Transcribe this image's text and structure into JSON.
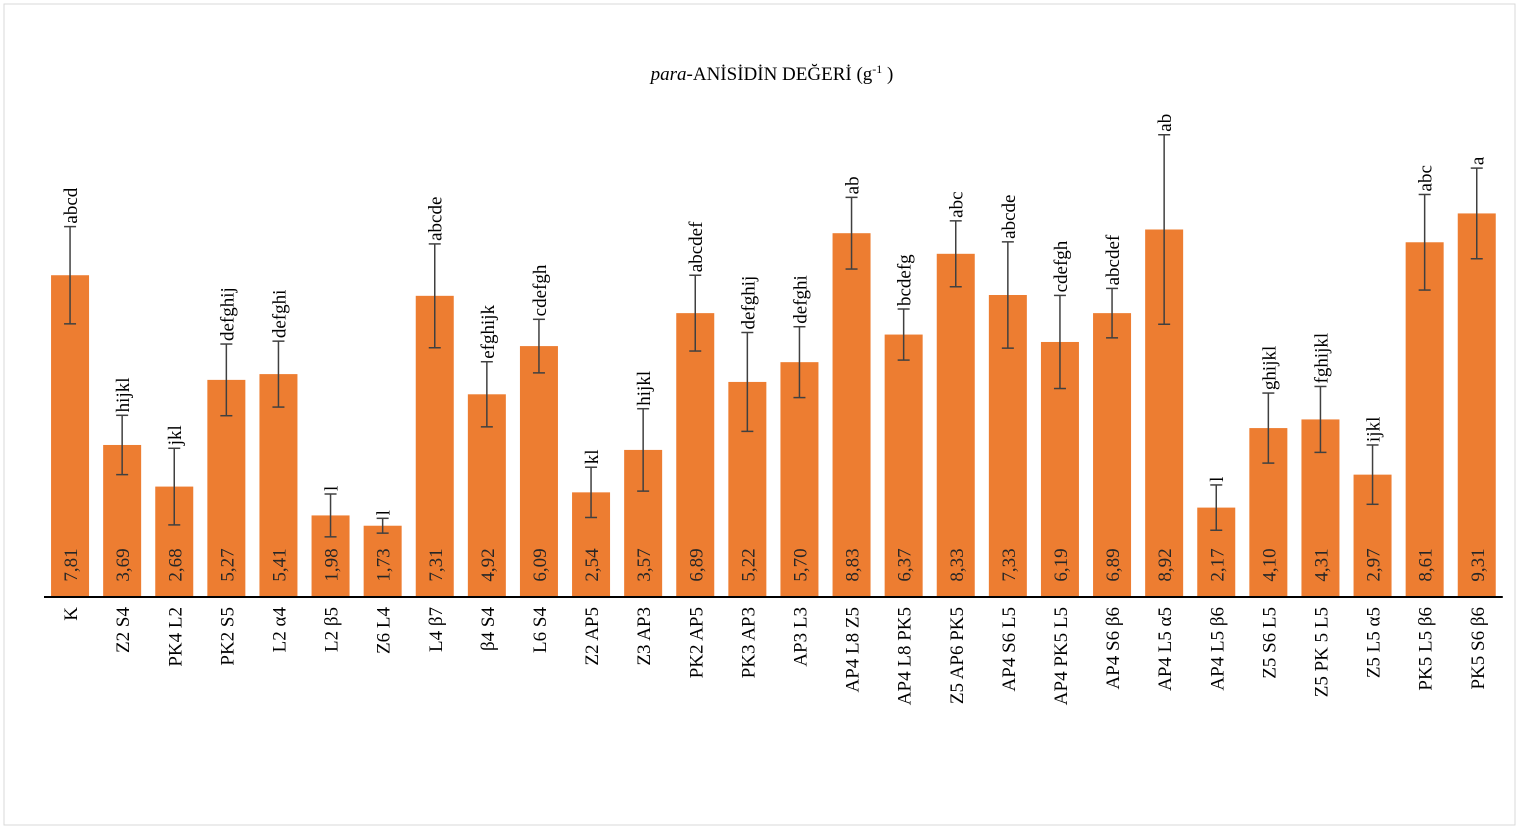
{
  "chart_data": {
    "type": "bar",
    "title_parts": [
      "para",
      "-ANİSİDİN DEĞERİ (g",
      "-1",
      " )"
    ],
    "categories": [
      "K",
      "Z2 S4",
      "PK4 L2",
      "PK2 S5",
      "L2 α4",
      "L2 β5",
      "Z6 L4",
      "L4 β7",
      "β4 S4",
      "L6 S4",
      "Z2 AP5",
      "Z3 AP3",
      "PK2 AP5",
      "PK3 AP3",
      "AP3 L3",
      "AP4 L8 Z5",
      "AP4 L8 PK5",
      "Z5 AP6 PK5",
      "AP4 S6 L5",
      "AP4 PK5 L5",
      "AP4 S6 β6",
      "AP4 L5 α5",
      "AP4 L5 β6",
      "Z5 S6 L5",
      "Z5 PK 5 L5",
      "Z5 L5 α5",
      "PK5 L5 β6",
      "PK5 S6 β6"
    ],
    "values": [
      7.81,
      3.69,
      2.68,
      5.27,
      5.41,
      1.98,
      1.73,
      7.31,
      4.92,
      6.09,
      2.54,
      3.57,
      6.89,
      5.22,
      5.7,
      8.83,
      6.37,
      8.33,
      7.33,
      6.19,
      6.89,
      8.92,
      2.17,
      4.1,
      4.31,
      2.97,
      8.61,
      9.31
    ],
    "value_labels": [
      "7,81",
      "3,69",
      "2,68",
      "5,27",
      "5,41",
      "1,98",
      "1,73",
      "7,31",
      "4,92",
      "6,09",
      "2,54",
      "3,57",
      "6,89",
      "5,22",
      "5,70",
      "8,83",
      "6,37",
      "8,33",
      "7,33",
      "6,19",
      "6,89",
      "8,92",
      "2,17",
      "4,10",
      "4,31",
      "2,97",
      "8,61",
      "9,31"
    ],
    "errors": [
      1.18,
      0.72,
      0.93,
      0.87,
      0.8,
      0.52,
      0.18,
      1.26,
      0.79,
      0.65,
      0.61,
      1.0,
      0.92,
      1.2,
      0.86,
      0.87,
      0.62,
      0.8,
      1.29,
      1.13,
      0.6,
      2.3,
      0.55,
      0.85,
      0.8,
      0.72,
      1.16,
      1.1
    ],
    "annotations": [
      "abcd",
      "hijkl",
      "jkl",
      "defghij",
      "defghi",
      "l",
      "l",
      "abcde",
      "efghijk",
      "cdefgh",
      "kl",
      "hijkl",
      "abcdef",
      "defghij",
      "defghi",
      "ab",
      "bcdefg",
      "abc",
      "abcde",
      "cdefgh",
      "abcdef",
      "ab",
      "l",
      "ghijkl",
      "fghijkl",
      "ijkl",
      "abc",
      "a"
    ],
    "color": "#ed7d31",
    "error_color": "#404040"
  }
}
